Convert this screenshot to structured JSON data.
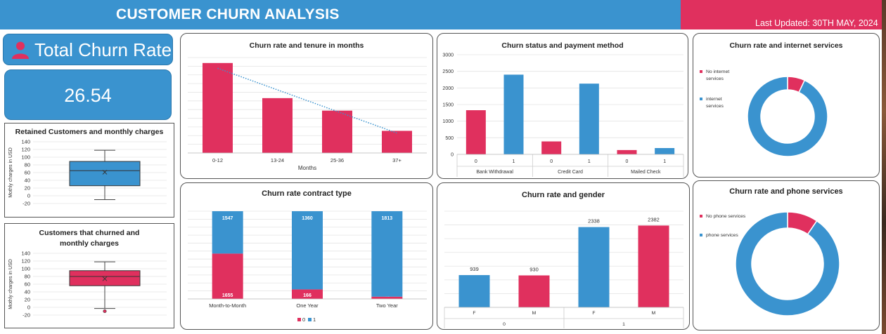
{
  "header": {
    "title": "CUSTOMER CHURN ANALYSIS",
    "last_updated": "Last Updated: 30TH MAY, 2024"
  },
  "kpi": {
    "title": "Total Churn Rate",
    "value": "26.54",
    "icon": "person-icon"
  },
  "colors": {
    "blue": "#3a93cf",
    "pink": "#e0305e",
    "grid": "#e4e4e4"
  },
  "chart_data": [
    {
      "id": "retained",
      "type": "box",
      "title": "Retained Customers and monthly charges",
      "ylabel": "Mothly charges in USD",
      "yticks": [
        -20,
        0,
        20,
        40,
        60,
        80,
        100,
        120,
        140
      ],
      "ylim": [
        -20,
        140
      ],
      "box": {
        "min": -10,
        "q1": 26,
        "median": 65,
        "q3": 89,
        "max": 118,
        "mean": 61
      },
      "outliers": [],
      "color": "#3a93cf"
    },
    {
      "id": "churned",
      "type": "box",
      "title": "Customers that churned and monthly charges",
      "ylabel": "Mothly charges in USD",
      "yticks": [
        -20,
        0,
        20,
        40,
        60,
        80,
        100,
        120,
        140
      ],
      "ylim": [
        -20,
        140
      ],
      "box": {
        "min": -3,
        "q1": 56,
        "median": 80,
        "q3": 95,
        "max": 118,
        "mean": 74
      },
      "outliers": [
        -10
      ],
      "color": "#e0305e"
    },
    {
      "id": "tenure",
      "type": "bar",
      "title": "Churn rate and tenure in months",
      "xlabel": "Months",
      "categories": [
        "0-12",
        "13-24",
        "25-36",
        "37+"
      ],
      "values": [
        1037,
        632,
        488,
        255
      ],
      "ylim": [
        0,
        1100
      ],
      "trendline": true,
      "color": "#e0305e"
    },
    {
      "id": "payment",
      "type": "bar",
      "title": "Churn status and payment method",
      "yticks": [
        0,
        500,
        1000,
        1500,
        2000,
        2500,
        3000
      ],
      "ylim": [
        0,
        3000
      ],
      "groups": [
        {
          "label": "Bank Withdrawal",
          "bars": [
            {
              "label": "0",
              "value": 1330
            },
            {
              "label": "1",
              "value": 2400
            }
          ]
        },
        {
          "label": "Credit Card",
          "bars": [
            {
              "label": "0",
              "value": 390
            },
            {
              "label": "1",
              "value": 2130
            }
          ]
        },
        {
          "label": "Mailed Check",
          "bars": [
            {
              "label": "0",
              "value": 130
            },
            {
              "label": "1",
              "value": 190
            }
          ]
        }
      ]
    },
    {
      "id": "internet",
      "type": "pie",
      "title": "Churn rate and internet services",
      "slices": [
        {
          "label": "No internet services",
          "value": 7,
          "color": "#e0305e"
        },
        {
          "label": "internet services",
          "value": 93,
          "color": "#3a93cf"
        }
      ]
    },
    {
      "id": "contract",
      "type": "bar",
      "stacked": true,
      "title": "Churn rate contract type",
      "categories": [
        "Month-to-Month",
        "One Year",
        "Two Year"
      ],
      "series": [
        {
          "name": "0",
          "values": [
            1655,
            166,
            48
          ],
          "color": "#e0305e"
        },
        {
          "name": "1",
          "values": [
            1547,
            1360,
            1813
          ],
          "color": "#3a93cf"
        }
      ],
      "legend": "bottom"
    },
    {
      "id": "gender",
      "type": "bar",
      "title": "Churn rate and gender",
      "ylim": [
        0,
        2800
      ],
      "groups": [
        {
          "label": "0",
          "bars": [
            {
              "label": "F",
              "value": 939,
              "color": "#3a93cf"
            },
            {
              "label": "M",
              "value": 930,
              "color": "#e0305e"
            }
          ]
        },
        {
          "label": "1",
          "bars": [
            {
              "label": "F",
              "value": 2338,
              "color": "#3a93cf"
            },
            {
              "label": "M",
              "value": 2382,
              "color": "#e0305e"
            }
          ]
        }
      ]
    },
    {
      "id": "phone",
      "type": "pie",
      "title": "Churn rate and phone services",
      "slices": [
        {
          "label": "No phone services",
          "value": 9.5,
          "color": "#e0305e"
        },
        {
          "label": "phone services",
          "value": 90.5,
          "color": "#3a93cf"
        }
      ]
    }
  ]
}
